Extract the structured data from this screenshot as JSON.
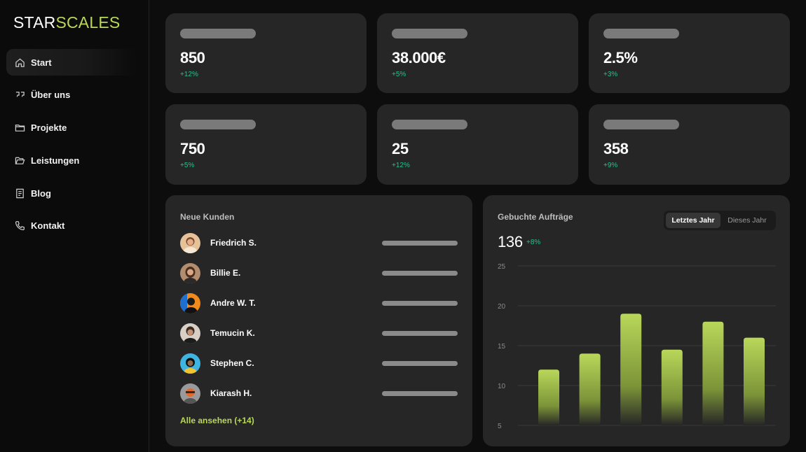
{
  "brand": {
    "part1": "STAR",
    "part2": "SCALES",
    "accent_color": "#b9d75a"
  },
  "nav": [
    {
      "label": "Start",
      "icon": "home-icon",
      "active": true
    },
    {
      "label": "Über uns",
      "icon": "quote-icon",
      "active": false
    },
    {
      "label": "Projekte",
      "icon": "folder-icon",
      "active": false
    },
    {
      "label": "Leistungen",
      "icon": "folder-open-icon",
      "active": false
    },
    {
      "label": "Blog",
      "icon": "document-icon",
      "active": false
    },
    {
      "label": "Kontakt",
      "icon": "phone-icon",
      "active": false
    }
  ],
  "stats": [
    {
      "value": "850",
      "delta": "+12%"
    },
    {
      "value": "38.000€",
      "delta": "+5%"
    },
    {
      "value": "2.5%",
      "delta": "+3%"
    },
    {
      "value": "750",
      "delta": "+5%"
    },
    {
      "value": "25",
      "delta": "+12%"
    },
    {
      "value": "358",
      "delta": "+9%"
    }
  ],
  "customers": {
    "title": "Neue Kunden",
    "items": [
      {
        "name": "Friedrich S."
      },
      {
        "name": "Billie E."
      },
      {
        "name": "Andre W. T."
      },
      {
        "name": "Temucin K."
      },
      {
        "name": "Stephen C."
      },
      {
        "name": "Kiarash H."
      }
    ],
    "see_all": "Alle ansehen (+14)"
  },
  "orders": {
    "title": "Gebuchte Aufträge",
    "toggle": {
      "active": "Letztes Jahr",
      "inactive": "Dieses Jahr"
    },
    "total": "136",
    "delta": "+8%"
  },
  "chart_data": {
    "type": "bar",
    "title": "Gebuchte Aufträge",
    "categories": [
      "",
      "",
      "",
      "",
      "",
      ""
    ],
    "values": [
      12,
      14,
      19,
      14.5,
      18,
      16
    ],
    "yticks": [
      25,
      20,
      15,
      10,
      5
    ],
    "ylim": [
      5,
      25
    ],
    "xlabel": "",
    "ylabel": "",
    "grid": true,
    "bar_color": "#b9d75a"
  },
  "colors": {
    "positive": "#21c58a",
    "card_bg": "#262626",
    "page_bg": "#0d0d0d"
  }
}
